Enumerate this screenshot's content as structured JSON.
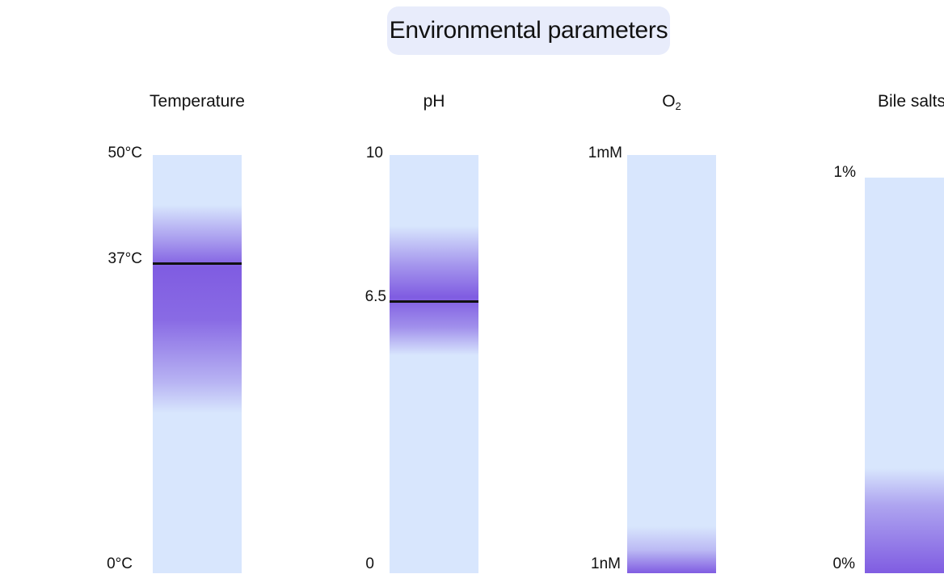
{
  "title": "Environmental parameters",
  "panels": [
    {
      "label": "Temperature",
      "top_label": "50°C",
      "bottom_label": "0°C",
      "optimum_label": "37°C",
      "range": [
        0,
        50
      ],
      "optimum": 37
    },
    {
      "label": "pH",
      "top_label": "10",
      "bottom_label": "0",
      "optimum_label": "6.5",
      "range": [
        0,
        10
      ],
      "optimum": 6.5
    },
    {
      "label": "O",
      "label_sub": "2",
      "top_label": "1mM",
      "bottom_label": "1nM"
    },
    {
      "label": "Bile salts",
      "top_label": "1%",
      "bottom_label": "0%"
    }
  ],
  "colors": {
    "bar_background": "#d8e6fd",
    "gradient": "#7b55e0",
    "title_background": "#e8ecfb",
    "marker": "#111111"
  }
}
